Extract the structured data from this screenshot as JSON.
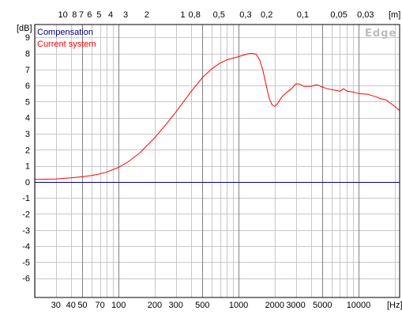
{
  "chart_data": {
    "type": "line",
    "xscale": "log",
    "xlim": [
      20,
      22000
    ],
    "ylim": [
      -7.2,
      9.8
    ],
    "grid": true,
    "x_unit_label": "[Hz]",
    "y_unit_label": "[dB]",
    "top_unit_label": "[m]",
    "x_tick_labels": [
      {
        "v": 30,
        "t": "30"
      },
      {
        "v": 40,
        "t": "40"
      },
      {
        "v": 50,
        "t": "50"
      },
      {
        "v": 70,
        "t": "70"
      },
      {
        "v": 100,
        "t": "100"
      },
      {
        "v": 200,
        "t": "200"
      },
      {
        "v": 300,
        "t": "300"
      },
      {
        "v": 500,
        "t": "500"
      },
      {
        "v": 1000,
        "t": "1000"
      },
      {
        "v": 2000,
        "t": "2000"
      },
      {
        "v": 3000,
        "t": "3000"
      },
      {
        "v": 5000,
        "t": "5000"
      },
      {
        "v": 10000,
        "t": "10000"
      }
    ],
    "top_tick_labels": [
      {
        "v": 10,
        "t": "10"
      },
      {
        "v": 8,
        "t": "8"
      },
      {
        "v": 7,
        "t": "7"
      },
      {
        "v": 6,
        "t": "6"
      },
      {
        "v": 5,
        "t": "5"
      },
      {
        "v": 4,
        "t": "4"
      },
      {
        "v": 3,
        "t": "3"
      },
      {
        "v": 2,
        "t": "2"
      },
      {
        "v": 1,
        "t": "1"
      },
      {
        "v": 0.8,
        "t": "0,8"
      },
      {
        "v": 0.5,
        "t": "0,5"
      },
      {
        "v": 0.3,
        "t": "0,3"
      },
      {
        "v": 0.2,
        "t": "0,2"
      },
      {
        "v": 0.1,
        "t": "0,1"
      },
      {
        "v": 0.05,
        "t": "0,05"
      },
      {
        "v": 0.03,
        "t": "0,03"
      }
    ],
    "y_ticks": [
      9,
      8,
      7,
      6,
      5,
      4,
      3,
      2,
      1,
      0,
      -1,
      -2,
      -3,
      -4,
      -5,
      -6
    ],
    "watermark": "Edge",
    "legend_position": "top-left",
    "series": [
      {
        "name": "Compensation",
        "color": "#000080",
        "x": [
          20,
          22000
        ],
        "y": [
          0,
          0
        ]
      },
      {
        "name": "Current system",
        "color": "#ff0000",
        "x": [
          20,
          30,
          40,
          50,
          60,
          70,
          80,
          100,
          120,
          150,
          200,
          250,
          300,
          400,
          500,
          600,
          700,
          800,
          1000,
          1100,
          1200,
          1300,
          1400,
          1500,
          1600,
          1700,
          1800,
          1900,
          2000,
          2100,
          2300,
          2500,
          2800,
          3000,
          3200,
          3500,
          4000,
          4500,
          5000,
          5500,
          6000,
          7000,
          7500,
          8000,
          9000,
          10000,
          12000,
          14000,
          15000,
          17000,
          20000,
          22000
        ],
        "y": [
          0.15,
          0.18,
          0.25,
          0.32,
          0.4,
          0.5,
          0.62,
          0.9,
          1.25,
          1.8,
          2.75,
          3.6,
          4.35,
          5.6,
          6.5,
          7.05,
          7.4,
          7.6,
          7.8,
          7.9,
          7.98,
          8.0,
          7.95,
          7.6,
          6.9,
          6.0,
          5.2,
          4.8,
          4.7,
          4.85,
          5.3,
          5.55,
          5.85,
          6.1,
          6.1,
          5.95,
          5.95,
          6.05,
          5.9,
          5.8,
          5.75,
          5.65,
          5.8,
          5.65,
          5.6,
          5.5,
          5.45,
          5.3,
          5.2,
          5.1,
          4.7,
          4.45
        ]
      }
    ]
  }
}
